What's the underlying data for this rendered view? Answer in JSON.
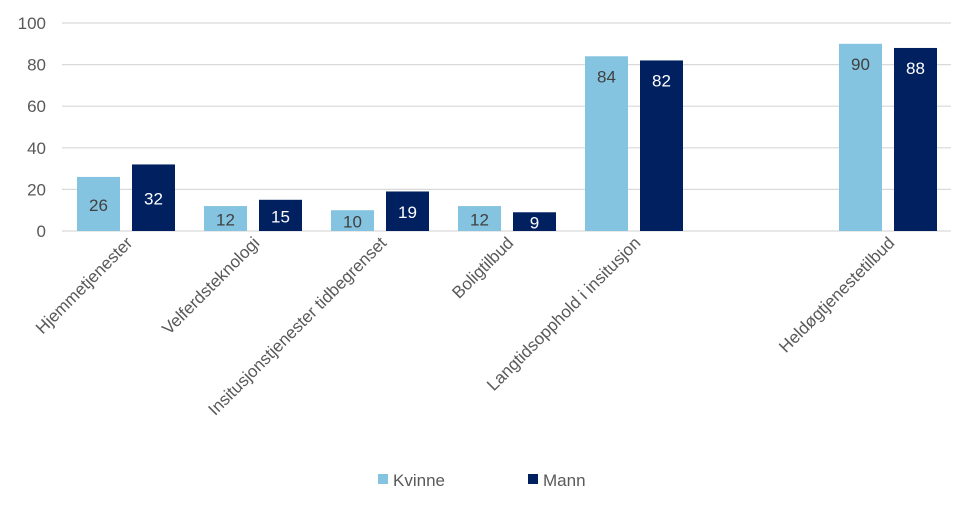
{
  "chart_data": {
    "type": "bar",
    "categories": [
      "Hjemmetjenester",
      "Velferdsteknologi",
      "Insitusjonstjenester tidbegrenset",
      "Boligtilbud",
      "Langtidsopphold i insitusjon",
      "",
      "Heldøgtjenestetilbud"
    ],
    "series": [
      {
        "name": "Kvinne",
        "color": "#85C4E0",
        "values": [
          26,
          12,
          10,
          12,
          84,
          null,
          90
        ]
      },
      {
        "name": "Mann",
        "color": "#002060",
        "values": [
          32,
          15,
          19,
          9,
          82,
          null,
          88
        ]
      }
    ],
    "ylim": [
      0,
      100
    ],
    "yticks": [
      "0",
      "20",
      "40",
      "60",
      "80",
      "100"
    ],
    "grid": true,
    "legend": "bottom",
    "title": "",
    "xlabel": "",
    "ylabel": ""
  }
}
